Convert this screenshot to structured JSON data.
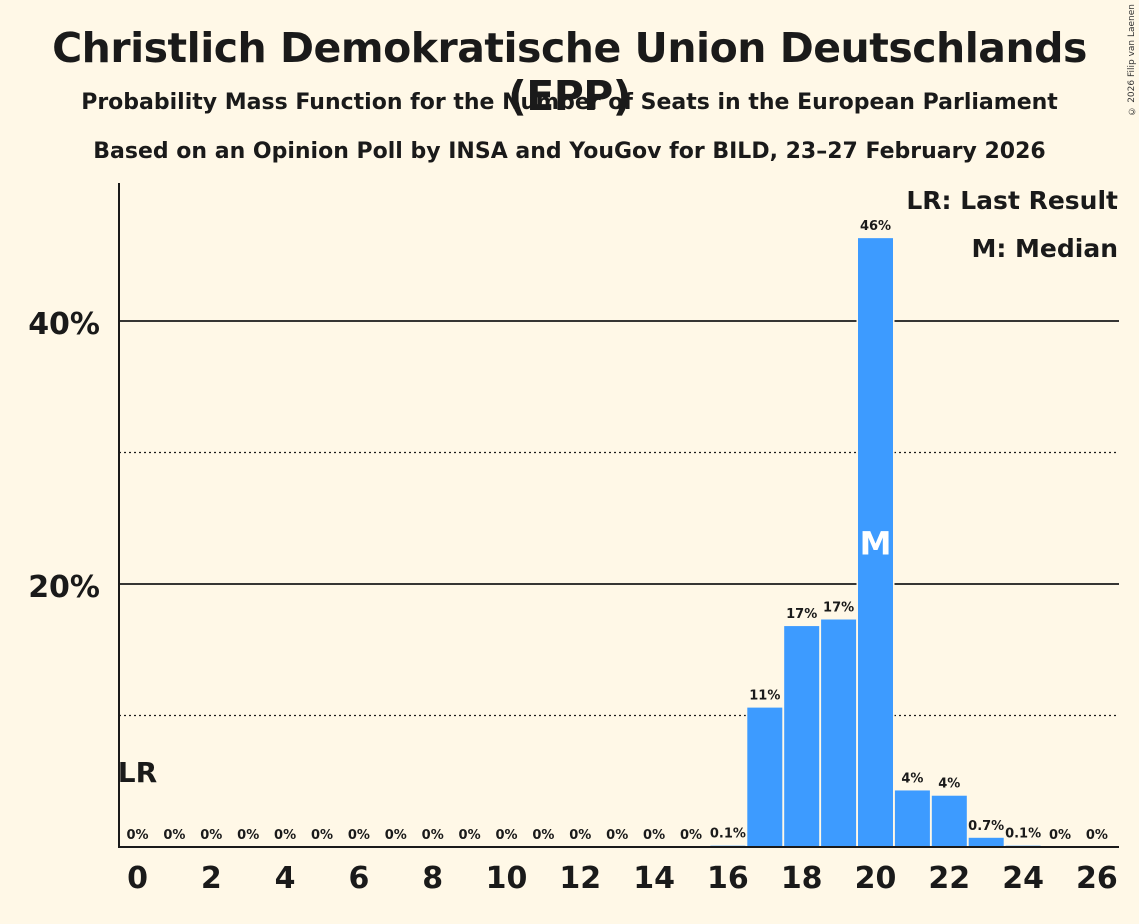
{
  "chart_data": {
    "type": "bar",
    "title": "Christlich Demokratische Union Deutschlands (EPP)",
    "subtitle": "Probability Mass Function for the Number of Seats in the European Parliament",
    "subtitle2": "Based on an Opinion Poll by INSA and YouGov for BILD, 23–27 February 2026",
    "copyright": "© 2026 Filip van Laenen",
    "categories": [
      0,
      1,
      2,
      3,
      4,
      5,
      6,
      7,
      8,
      9,
      10,
      11,
      12,
      13,
      14,
      15,
      16,
      17,
      18,
      19,
      20,
      21,
      22,
      23,
      24,
      25,
      26
    ],
    "values": [
      0,
      0,
      0,
      0,
      0,
      0,
      0,
      0,
      0,
      0,
      0,
      0,
      0,
      0,
      0,
      0,
      0.1,
      10.6,
      16.8,
      17.3,
      46.3,
      4.3,
      3.9,
      0.7,
      0.1,
      0,
      0
    ],
    "value_labels": [
      "0%",
      "0%",
      "0%",
      "0%",
      "0%",
      "0%",
      "0%",
      "0%",
      "0%",
      "0%",
      "0%",
      "0%",
      "0%",
      "0%",
      "0%",
      "0%",
      "0.1%",
      "11%",
      "17%",
      "17%",
      "46%",
      "4%",
      "4%",
      "0.7%",
      "0.1%",
      "0%",
      "0%"
    ],
    "x_tick_labels": [
      "0",
      "2",
      "4",
      "6",
      "8",
      "10",
      "12",
      "14",
      "16",
      "18",
      "20",
      "22",
      "24",
      "26"
    ],
    "y_tick_labels": [
      "20%",
      "40%"
    ],
    "ylim": [
      0,
      50
    ],
    "gridlines": {
      "solid": [
        20,
        40
      ],
      "dotted": [
        10,
        30
      ]
    },
    "last_result": {
      "seat": 0,
      "label": "LR"
    },
    "median": {
      "seat": 20,
      "label": "M"
    },
    "legend": [
      "LR: Last Result",
      "M: Median"
    ],
    "bar_color": "#3d9bff"
  }
}
